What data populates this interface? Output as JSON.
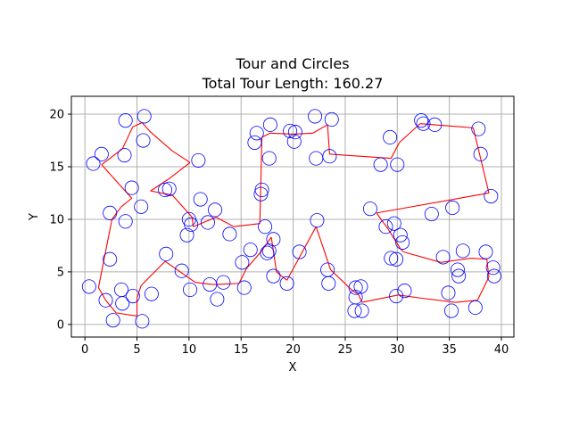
{
  "chart_data": {
    "type": "scatter",
    "title": "Tour and Circles",
    "subtitle": "Total Tour Length: 160.27",
    "xlabel": "X",
    "ylabel": "Y",
    "xlim": [
      -1.3,
      41.2
    ],
    "ylim": [
      -1.2,
      21.7
    ],
    "xticks": [
      0,
      5,
      10,
      15,
      20,
      25,
      30,
      35,
      40
    ],
    "yticks": [
      0,
      5,
      10,
      15,
      20
    ],
    "grid": true,
    "colors": {
      "circles": "#0000ff",
      "tour": "#ff0000",
      "grid": "#b0b0b0"
    },
    "circles": [
      [
        0.4,
        3.6
      ],
      [
        1.6,
        16.2
      ],
      [
        0.8,
        15.3
      ],
      [
        2.0,
        2.3
      ],
      [
        2.4,
        6.2
      ],
      [
        2.4,
        10.6
      ],
      [
        2.7,
        0.4
      ],
      [
        3.5,
        3.3
      ],
      [
        3.6,
        2.0
      ],
      [
        3.8,
        16.1
      ],
      [
        3.9,
        19.4
      ],
      [
        3.9,
        9.8
      ],
      [
        4.5,
        13.0
      ],
      [
        4.6,
        2.7
      ],
      [
        5.4,
        11.2
      ],
      [
        5.5,
        0.3
      ],
      [
        5.6,
        17.5
      ],
      [
        5.7,
        19.8
      ],
      [
        6.4,
        2.9
      ],
      [
        7.7,
        12.8
      ],
      [
        7.8,
        6.7
      ],
      [
        8.1,
        12.9
      ],
      [
        9.3,
        5.1
      ],
      [
        9.8,
        8.5
      ],
      [
        10.0,
        10.0
      ],
      [
        10.1,
        3.3
      ],
      [
        10.2,
        9.5
      ],
      [
        10.9,
        15.6
      ],
      [
        11.1,
        11.9
      ],
      [
        11.8,
        9.7
      ],
      [
        12.0,
        3.8
      ],
      [
        12.5,
        10.9
      ],
      [
        12.7,
        2.4
      ],
      [
        13.3,
        4.0
      ],
      [
        13.9,
        8.6
      ],
      [
        15.1,
        5.9
      ],
      [
        15.3,
        3.5
      ],
      [
        15.9,
        7.1
      ],
      [
        16.3,
        17.3
      ],
      [
        16.5,
        18.2
      ],
      [
        16.9,
        12.4
      ],
      [
        17.0,
        12.8
      ],
      [
        17.3,
        9.3
      ],
      [
        17.5,
        6.8
      ],
      [
        17.7,
        15.8
      ],
      [
        17.7,
        7.0
      ],
      [
        17.8,
        19.0
      ],
      [
        18.1,
        8.1
      ],
      [
        18.1,
        4.6
      ],
      [
        19.4,
        3.9
      ],
      [
        19.7,
        18.4
      ],
      [
        20.1,
        17.4
      ],
      [
        20.2,
        18.3
      ],
      [
        20.6,
        6.9
      ],
      [
        22.1,
        19.8
      ],
      [
        22.2,
        15.8
      ],
      [
        22.3,
        9.9
      ],
      [
        23.3,
        5.2
      ],
      [
        23.4,
        3.9
      ],
      [
        23.5,
        16.0
      ],
      [
        23.7,
        19.5
      ],
      [
        25.9,
        1.3
      ],
      [
        26.0,
        2.6
      ],
      [
        26.0,
        3.5
      ],
      [
        26.5,
        3.6
      ],
      [
        26.6,
        1.3
      ],
      [
        27.4,
        11.0
      ],
      [
        28.4,
        15.2
      ],
      [
        28.9,
        9.3
      ],
      [
        29.3,
        17.8
      ],
      [
        29.4,
        6.3
      ],
      [
        29.7,
        9.6
      ],
      [
        29.9,
        6.2
      ],
      [
        29.9,
        2.7
      ],
      [
        30.0,
        15.2
      ],
      [
        30.3,
        8.5
      ],
      [
        30.5,
        7.8
      ],
      [
        30.7,
        3.2
      ],
      [
        32.3,
        19.4
      ],
      [
        32.5,
        19.1
      ],
      [
        33.3,
        10.5
      ],
      [
        33.6,
        19.0
      ],
      [
        34.4,
        6.4
      ],
      [
        34.9,
        3.0
      ],
      [
        35.2,
        1.3
      ],
      [
        35.3,
        11.1
      ],
      [
        35.8,
        5.2
      ],
      [
        35.9,
        4.6
      ],
      [
        36.3,
        7.0
      ],
      [
        37.5,
        1.6
      ],
      [
        37.8,
        18.6
      ],
      [
        38.0,
        16.2
      ],
      [
        38.5,
        6.9
      ],
      [
        39.0,
        12.2
      ],
      [
        39.2,
        5.4
      ],
      [
        39.3,
        4.6
      ]
    ],
    "tour": [
      [
        2.0,
        2.3
      ],
      [
        1.3,
        3.5
      ],
      [
        2.6,
        10.0
      ],
      [
        3.5,
        11.2
      ],
      [
        4.5,
        12.0
      ],
      [
        1.6,
        15.2
      ],
      [
        3.6,
        16.7
      ],
      [
        4.6,
        18.8
      ],
      [
        5.5,
        19.2
      ],
      [
        6.3,
        18.3
      ],
      [
        8.4,
        16.5
      ],
      [
        10.1,
        15.4
      ],
      [
        8.0,
        13.8
      ],
      [
        6.3,
        12.7
      ],
      [
        8.4,
        12.3
      ],
      [
        10.3,
        10.2
      ],
      [
        10.4,
        9.3
      ],
      [
        12.6,
        10.2
      ],
      [
        14.3,
        9.3
      ],
      [
        16.8,
        9.6
      ],
      [
        17.0,
        17.8
      ],
      [
        17.8,
        18.2
      ],
      [
        20.0,
        18.1
      ],
      [
        21.9,
        18.2
      ],
      [
        23.3,
        19.0
      ],
      [
        23.5,
        16.2
      ],
      [
        29.4,
        15.8
      ],
      [
        30.2,
        17.3
      ],
      [
        32.2,
        19.1
      ],
      [
        37.3,
        18.7
      ],
      [
        38.8,
        12.5
      ],
      [
        28.0,
        10.6
      ],
      [
        29.1,
        9.1
      ],
      [
        30.3,
        7.2
      ],
      [
        30.6,
        6.9
      ],
      [
        34.2,
        5.9
      ],
      [
        37.1,
        6.3
      ],
      [
        38.6,
        6.2
      ],
      [
        38.8,
        4.5
      ],
      [
        37.7,
        2.3
      ],
      [
        35.6,
        2.1
      ],
      [
        32.3,
        2.5
      ],
      [
        30.1,
        2.8
      ],
      [
        26.6,
        2.1
      ],
      [
        26.3,
        2.8
      ],
      [
        25.6,
        3.3
      ],
      [
        23.6,
        5.2
      ],
      [
        22.2,
        9.3
      ],
      [
        19.4,
        4.2
      ],
      [
        18.4,
        5.0
      ],
      [
        17.9,
        8.3
      ],
      [
        16.9,
        6.9
      ],
      [
        15.5,
        5.3
      ],
      [
        14.8,
        3.9
      ],
      [
        12.3,
        3.8
      ],
      [
        10.6,
        4.0
      ],
      [
        7.7,
        6.0
      ],
      [
        5.4,
        3.7
      ],
      [
        5.0,
        2.5
      ],
      [
        5.0,
        0.8
      ],
      [
        3.0,
        1.1
      ]
    ]
  }
}
